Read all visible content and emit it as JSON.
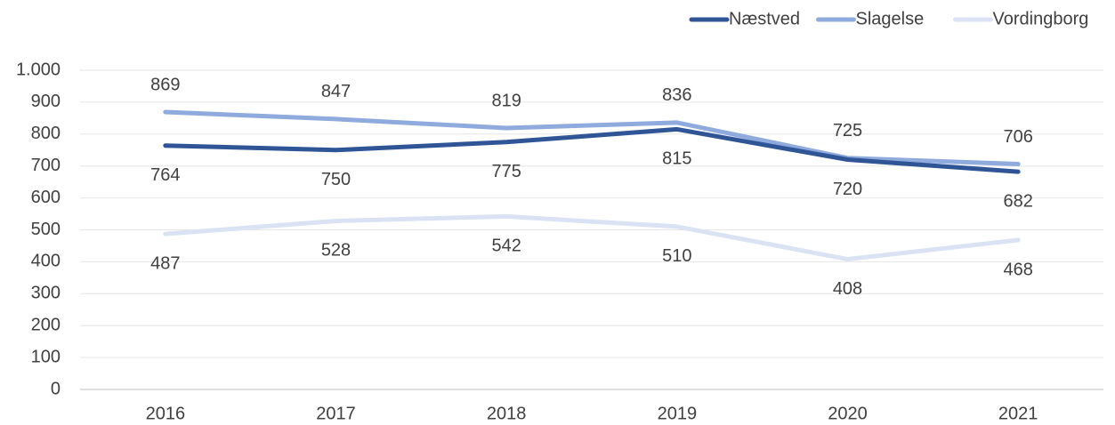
{
  "chart_data": {
    "type": "line",
    "categories": [
      "2016",
      "2017",
      "2018",
      "2019",
      "2020",
      "2021"
    ],
    "series": [
      {
        "name": "Næstved",
        "color": "#2f5597",
        "values": [
          764,
          750,
          775,
          815,
          720,
          682
        ]
      },
      {
        "name": "Slagelse",
        "color": "#8faadc",
        "values": [
          869,
          847,
          819,
          836,
          725,
          706
        ]
      },
      {
        "name": "Vordingborg",
        "color": "#dae3f3",
        "values": [
          487,
          528,
          542,
          510,
          408,
          468
        ]
      }
    ],
    "ylim": [
      0,
      1000
    ],
    "yticks": [
      0,
      100,
      200,
      300,
      400,
      500,
      600,
      700,
      800,
      900,
      {
        "value": 1000,
        "label": "1.000"
      }
    ],
    "grid": true,
    "legend": "top-right"
  }
}
